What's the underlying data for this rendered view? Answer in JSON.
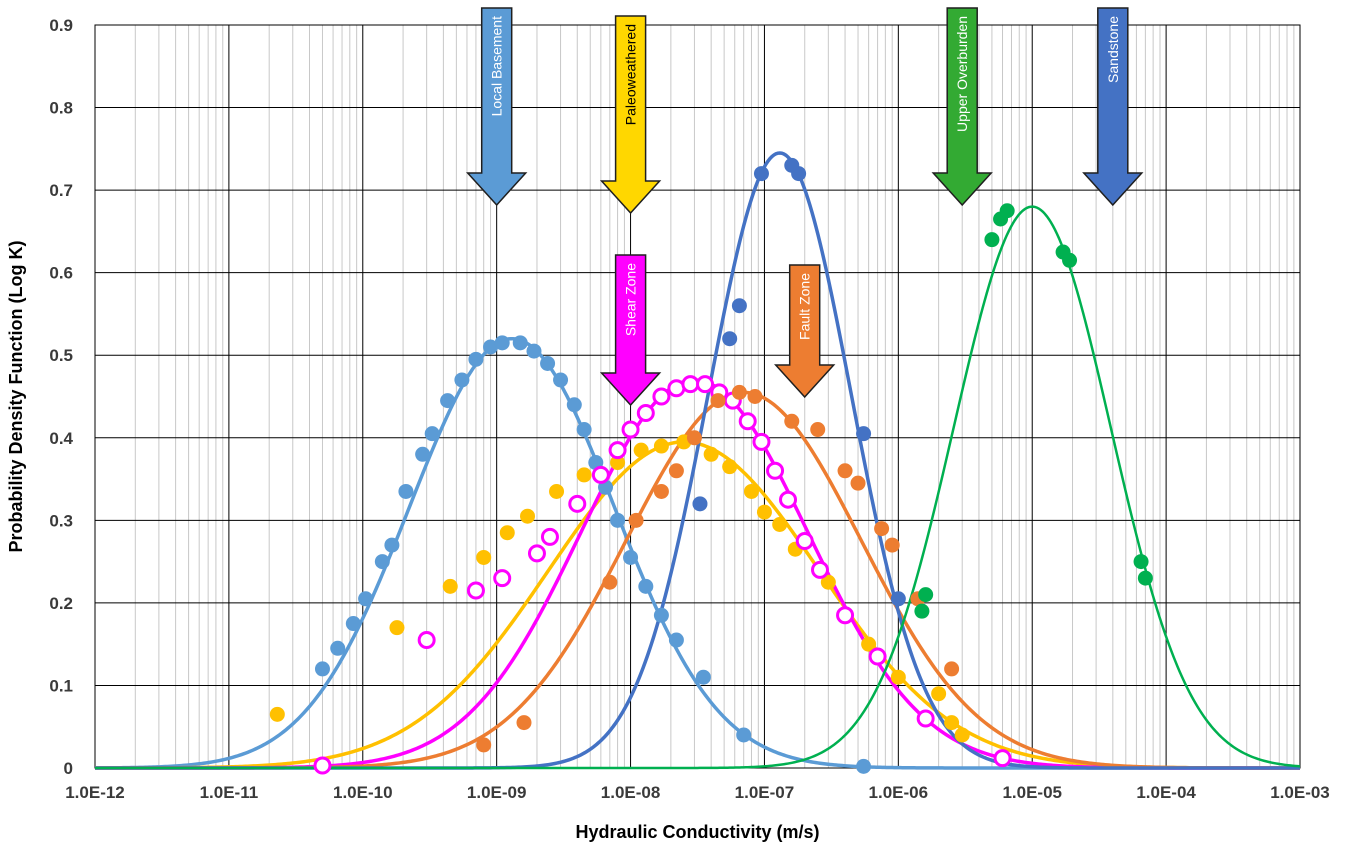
{
  "chart_data": {
    "type": "line",
    "title": "",
    "xlabel": "Hydraulic Conductivity (m/s)",
    "ylabel": "Probability Density Function (Log K)",
    "x_scale": "log",
    "xlim": [
      1e-12,
      0.001
    ],
    "ylim": [
      0,
      0.9
    ],
    "x_ticks": [
      "1.0E-12",
      "1.0E-11",
      "1.0E-10",
      "1.0E-09",
      "1.0E-08",
      "1.0E-07",
      "1.0E-06",
      "1.0E-05",
      "1.0E-04",
      "1.0E-03"
    ],
    "y_ticks": [
      "0",
      "0.1",
      "0.2",
      "0.3",
      "0.4",
      "0.5",
      "0.6",
      "0.7",
      "0.8",
      "0.9"
    ],
    "grid": true,
    "legend": "none",
    "series": [
      {
        "name": "Local Basement",
        "color": "#5B9BD5",
        "peak_x": 1.3e-09,
        "peak_y": 0.52,
        "points": [
          [
            5e-11,
            0.12
          ],
          [
            6.5e-11,
            0.145
          ],
          [
            8.5e-11,
            0.175
          ],
          [
            1.05e-10,
            0.205
          ],
          [
            1.4e-10,
            0.25
          ],
          [
            1.65e-10,
            0.27
          ],
          [
            2.1e-10,
            0.335
          ],
          [
            2.8e-10,
            0.38
          ],
          [
            3.3e-10,
            0.405
          ],
          [
            4.3e-10,
            0.445
          ],
          [
            5.5e-10,
            0.47
          ],
          [
            7e-10,
            0.495
          ],
          [
            9e-10,
            0.51
          ],
          [
            1.1e-09,
            0.515
          ],
          [
            1.5e-09,
            0.515
          ],
          [
            1.9e-09,
            0.505
          ],
          [
            2.4e-09,
            0.49
          ],
          [
            3e-09,
            0.47
          ],
          [
            3.8e-09,
            0.44
          ],
          [
            4.5e-09,
            0.41
          ],
          [
            5.5e-09,
            0.37
          ],
          [
            6.5e-09,
            0.34
          ],
          [
            8e-09,
            0.3
          ],
          [
            1e-08,
            0.255
          ],
          [
            1.3e-08,
            0.22
          ],
          [
            1.7e-08,
            0.185
          ],
          [
            2.2e-08,
            0.155
          ],
          [
            3.5e-08,
            0.11
          ],
          [
            7e-08,
            0.04
          ],
          [
            5.5e-07,
            0.002
          ]
        ]
      },
      {
        "name": "Paleoweathered",
        "color": "#FFC000",
        "peak_x": 2.5e-08,
        "peak_y": 0.395,
        "points": [
          [
            2.3e-11,
            0.065
          ],
          [
            1.8e-10,
            0.17
          ],
          [
            4.5e-10,
            0.22
          ],
          [
            8e-10,
            0.255
          ],
          [
            1.2e-09,
            0.285
          ],
          [
            1.7e-09,
            0.305
          ],
          [
            2.8e-09,
            0.335
          ],
          [
            4.5e-09,
            0.355
          ],
          [
            8e-09,
            0.37
          ],
          [
            1.2e-08,
            0.385
          ],
          [
            1.7e-08,
            0.39
          ],
          [
            2.5e-08,
            0.395
          ],
          [
            4e-08,
            0.38
          ],
          [
            5.5e-08,
            0.365
          ],
          [
            8e-08,
            0.335
          ],
          [
            1e-07,
            0.31
          ],
          [
            1.3e-07,
            0.295
          ],
          [
            1.7e-07,
            0.265
          ],
          [
            3e-07,
            0.225
          ],
          [
            6e-07,
            0.15
          ],
          [
            1e-06,
            0.11
          ],
          [
            2e-06,
            0.09
          ],
          [
            2.5e-06,
            0.055
          ],
          [
            3e-06,
            0.04
          ]
        ]
      },
      {
        "name": "Shear Zone",
        "color": "#FF00FF",
        "peak_x": 3e-08,
        "peak_y": 0.47,
        "points": [
          [
            5e-11,
            0.003
          ],
          [
            3e-10,
            0.155
          ],
          [
            7e-10,
            0.215
          ],
          [
            1.1e-09,
            0.23
          ],
          [
            2e-09,
            0.26
          ],
          [
            2.5e-09,
            0.28
          ],
          [
            4e-09,
            0.32
          ],
          [
            6e-09,
            0.355
          ],
          [
            8e-09,
            0.385
          ],
          [
            1e-08,
            0.41
          ],
          [
            1.3e-08,
            0.43
          ],
          [
            1.7e-08,
            0.45
          ],
          [
            2.2e-08,
            0.46
          ],
          [
            2.8e-08,
            0.465
          ],
          [
            3.6e-08,
            0.465
          ],
          [
            4.6e-08,
            0.455
          ],
          [
            5.8e-08,
            0.445
          ],
          [
            7.5e-08,
            0.42
          ],
          [
            9.5e-08,
            0.395
          ],
          [
            1.2e-07,
            0.36
          ],
          [
            1.5e-07,
            0.325
          ],
          [
            2e-07,
            0.275
          ],
          [
            2.6e-07,
            0.24
          ],
          [
            4e-07,
            0.185
          ],
          [
            7e-07,
            0.135
          ],
          [
            1.6e-06,
            0.06
          ],
          [
            6e-06,
            0.012
          ]
        ]
      },
      {
        "name": "Fault Zone",
        "color": "#ED7D31",
        "peak_x": 7e-08,
        "peak_y": 0.455,
        "points": [
          [
            8e-10,
            0.028
          ],
          [
            1.6e-09,
            0.055
          ],
          [
            7e-09,
            0.225
          ],
          [
            1.1e-08,
            0.3
          ],
          [
            1.7e-08,
            0.335
          ],
          [
            2.2e-08,
            0.36
          ],
          [
            3e-08,
            0.4
          ],
          [
            4.5e-08,
            0.445
          ],
          [
            6.5e-08,
            0.455
          ],
          [
            8.5e-08,
            0.45
          ],
          [
            1.6e-07,
            0.42
          ],
          [
            2.5e-07,
            0.41
          ],
          [
            4e-07,
            0.36
          ],
          [
            5e-07,
            0.345
          ],
          [
            7.5e-07,
            0.29
          ],
          [
            9e-07,
            0.27
          ],
          [
            1.4e-06,
            0.205
          ],
          [
            2.5e-06,
            0.12
          ]
        ]
      },
      {
        "name": "Sandstone",
        "color": "#4472C4",
        "peak_x": 1.3e-07,
        "peak_y": 0.745,
        "points": [
          [
            3.3e-08,
            0.32
          ],
          [
            5.5e-08,
            0.52
          ],
          [
            6.5e-08,
            0.56
          ],
          [
            9.5e-08,
            0.72
          ],
          [
            1.6e-07,
            0.73
          ],
          [
            1.8e-07,
            0.72
          ],
          [
            5.5e-07,
            0.405
          ],
          [
            1e-06,
            0.205
          ]
        ]
      },
      {
        "name": "Upper Overburden",
        "color": "#00B050",
        "peak_x": 1e-05,
        "peak_y": 0.68,
        "points": [
          [
            1.5e-06,
            0.19
          ],
          [
            1.6e-06,
            0.21
          ],
          [
            5e-06,
            0.64
          ],
          [
            5.8e-06,
            0.665
          ],
          [
            6.5e-06,
            0.675
          ],
          [
            1.7e-05,
            0.625
          ],
          [
            1.9e-05,
            0.615
          ],
          [
            6.5e-05,
            0.25
          ],
          [
            7e-05,
            0.23
          ]
        ]
      }
    ],
    "annotations": [
      {
        "label": "Local Basement",
        "color": "#5B9BD5",
        "x": 1e-09,
        "kind": "arrow"
      },
      {
        "label": "Paleoweathered",
        "color": "#FFD700",
        "x": 1e-08,
        "kind": "arrow"
      },
      {
        "label": "Shear Zone",
        "color": "#FF00FF",
        "x": 1e-08,
        "kind": "arrow"
      },
      {
        "label": "Fault Zone",
        "color": "#ED7D31",
        "x": 2e-07,
        "kind": "arrow"
      },
      {
        "label": "Upper Overburden",
        "color": "#33AA33",
        "x": 3e-06,
        "kind": "arrow"
      },
      {
        "label": "Sandstone",
        "color": "#4472C4",
        "x": 4e-05,
        "kind": "arrow"
      }
    ]
  }
}
